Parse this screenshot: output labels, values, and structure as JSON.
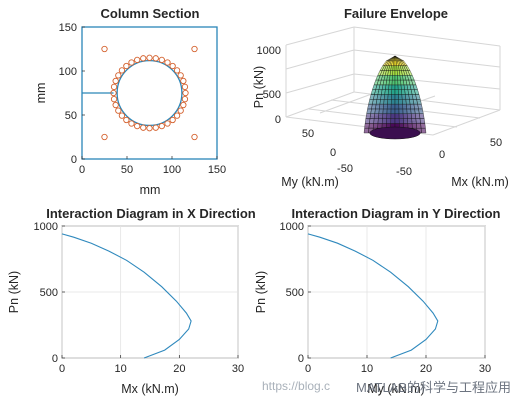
{
  "chart_data": [
    {
      "type": "section",
      "title": "Column Section",
      "xlabel": "mm",
      "ylabel": "mm",
      "xlim": [
        0,
        150
      ],
      "ylim": [
        0,
        150
      ],
      "xticks": [
        "0",
        "50",
        "100",
        "150"
      ],
      "yticks": [
        "0",
        "50",
        "100",
        "150"
      ],
      "section": {
        "width": 150,
        "height": 150
      },
      "core_circle": {
        "cx": 75,
        "cy": 75,
        "r": 36
      },
      "outer_ring": {
        "cx": 75,
        "cy": 75,
        "r": 40,
        "bar_count": 36,
        "bar_r": 3
      },
      "corner_bars": [
        [
          25,
          125
        ],
        [
          125,
          125
        ],
        [
          25,
          25
        ],
        [
          125,
          25
        ]
      ],
      "lead_line": {
        "y": 75,
        "x_from": 0,
        "x_to": 35
      },
      "colors": {
        "frame": "#2a86b8",
        "bars": "#d4622f"
      }
    },
    {
      "type": "surface3d",
      "title": "Failure Envelope",
      "xlabel": "Mx (kN.m)",
      "ylabel": "My (kN.m)",
      "zlabel": "Pn (kN)",
      "xticks": [
        "-50",
        "0",
        "50"
      ],
      "yticks": [
        "-50",
        "0",
        "50"
      ],
      "zticks": [
        "0",
        "500",
        "1000"
      ],
      "zlim": [
        0,
        1000
      ],
      "surface_peak": 950,
      "colormap": "viridis"
    },
    {
      "type": "line",
      "title": "Interaction Diagram in X Direction",
      "xlabel": "Mx (kN.m)",
      "ylabel": "Pn (kN)",
      "xlim": [
        0,
        30
      ],
      "ylim": [
        0,
        1000
      ],
      "xticks": [
        "0",
        "10",
        "20",
        "30"
      ],
      "yticks": [
        "0",
        "500",
        "1000"
      ],
      "grid": true,
      "x": [
        0,
        2,
        5,
        8,
        11,
        14,
        17,
        19.5,
        21.2,
        22,
        21.6,
        20,
        17.5,
        14
      ],
      "y": [
        940,
        915,
        870,
        810,
        740,
        650,
        540,
        430,
        340,
        280,
        220,
        140,
        60,
        0
      ],
      "color": "#2f89bd"
    },
    {
      "type": "line",
      "title": "Interaction Diagram in Y Direction",
      "xlabel": "My (kN.m)",
      "ylabel": "Pn (kN)",
      "xlim": [
        0,
        30
      ],
      "ylim": [
        0,
        1000
      ],
      "xticks": [
        "0",
        "10",
        "20",
        "30"
      ],
      "yticks": [
        "0",
        "500",
        "1000"
      ],
      "grid": true,
      "x": [
        0,
        2,
        5,
        8,
        11,
        14,
        17,
        19.5,
        21.2,
        22,
        21.6,
        20,
        17.5,
        14
      ],
      "y": [
        940,
        915,
        870,
        810,
        740,
        650,
        540,
        430,
        340,
        280,
        220,
        140,
        60,
        0
      ],
      "color": "#2f89bd"
    }
  ],
  "watermark": {
    "url": "https://blog.c",
    "brand": "MATLAB的科学与工程应用"
  }
}
